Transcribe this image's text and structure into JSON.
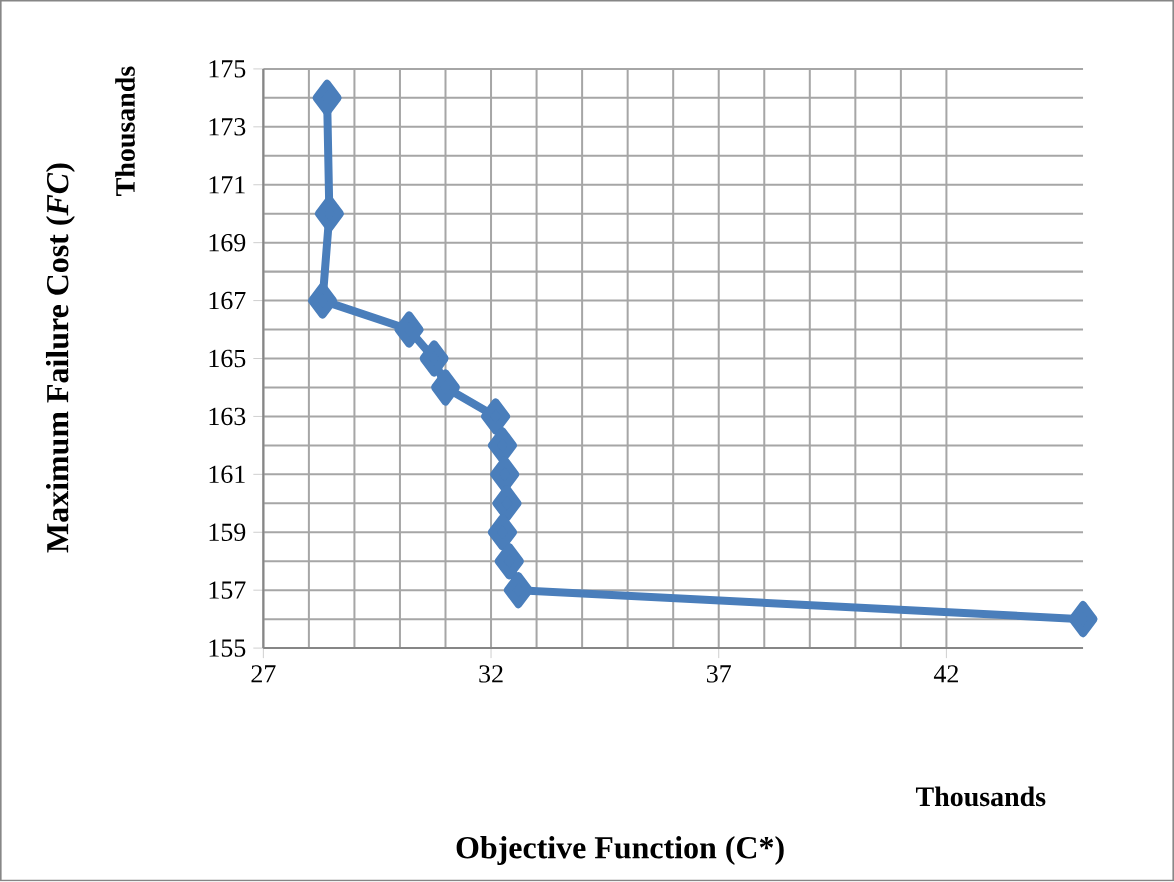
{
  "chart_data": {
    "type": "line",
    "xlabel": "Objective Function (C*)",
    "ylabel": "Maximum Failure Cost (*FC*)",
    "annotations": [
      "Thousands",
      "Thousands"
    ],
    "xlim": [
      27,
      45
    ],
    "xticks": [
      27,
      32,
      37,
      42
    ],
    "ylim": [
      155,
      175
    ],
    "yticks": [
      155,
      157,
      159,
      161,
      163,
      165,
      167,
      169,
      171,
      173,
      175
    ],
    "grid": true,
    "marker": "diamond",
    "line_style": "solid",
    "series": [
      {
        "color": "#4a7ebb",
        "x": [
          28.4,
          28.45,
          28.3,
          30.2,
          30.75,
          31.0,
          32.1,
          32.25,
          32.3,
          32.35,
          32.25,
          32.4,
          32.6,
          45
        ],
        "values": [
          174,
          170,
          167,
          166,
          165,
          164,
          163,
          162,
          161,
          160,
          159,
          158,
          157,
          156
        ]
      }
    ]
  }
}
